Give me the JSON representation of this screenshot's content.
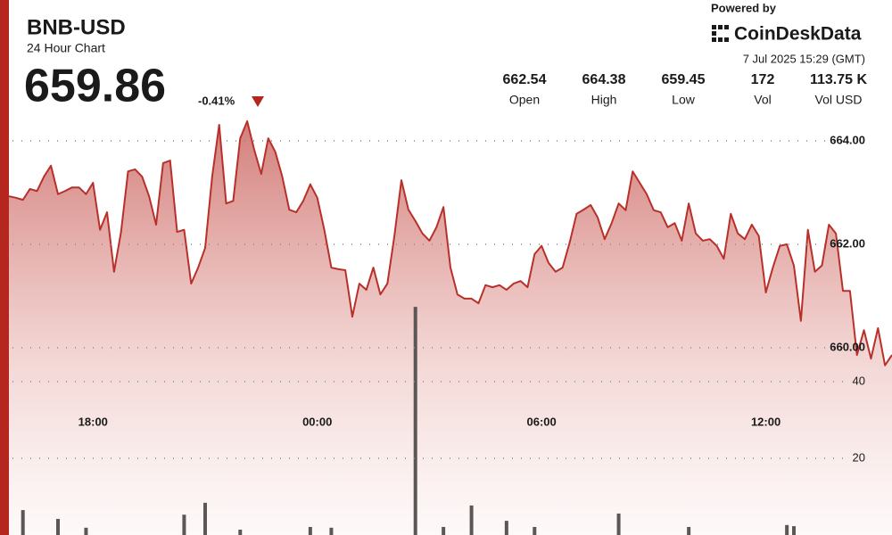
{
  "header": {
    "symbol": "BNB-USD",
    "subtitle": "24 Hour Chart",
    "price": "659.86",
    "change": "-0.41%",
    "powered_by": "Powered by",
    "brand": "CoinDeskData",
    "timestamp": "7 Jul 2025 15:29 (GMT)"
  },
  "stats": [
    {
      "value": "662.54",
      "label": "Open"
    },
    {
      "value": "664.38",
      "label": "High"
    },
    {
      "value": "659.45",
      "label": "Low"
    },
    {
      "value": "172",
      "label": "Vol"
    },
    {
      "value": "113.75 K",
      "label": "Vol USD"
    }
  ],
  "chart_data": {
    "type": "line",
    "categories": [
      null,
      null,
      null,
      null,
      null,
      null,
      null,
      null,
      null,
      null,
      null,
      null,
      "18:00",
      null,
      null,
      null,
      null,
      null,
      null,
      null,
      null,
      null,
      null,
      null,
      null,
      null,
      null,
      null,
      null,
      null,
      null,
      null,
      null,
      null,
      null,
      null,
      null,
      null,
      null,
      null,
      null,
      null,
      null,
      null,
      "00:00",
      null,
      null,
      null,
      null,
      null,
      null,
      null,
      null,
      null,
      null,
      null,
      null,
      null,
      null,
      null,
      null,
      null,
      null,
      null,
      null,
      null,
      null,
      null,
      null,
      null,
      null,
      null,
      null,
      null,
      null,
      null,
      "06:00",
      null,
      null,
      null,
      null,
      null,
      null,
      null,
      null,
      null,
      null,
      null,
      null,
      null,
      null,
      null,
      null,
      null,
      null,
      null,
      null,
      null,
      null,
      null,
      null,
      null,
      null,
      null,
      null,
      null,
      null,
      null,
      "12:00",
      null,
      null,
      null,
      null,
      null,
      null,
      null,
      null,
      null,
      null,
      null,
      null,
      null,
      null,
      null,
      null,
      null,
      null
    ],
    "series": [
      {
        "color": "#b8302a",
        "values": [
          662.93,
          662.9,
          662.86,
          663.07,
          663.03,
          663.31,
          663.52,
          662.97,
          663.03,
          663.1,
          663.1,
          662.97,
          663.19,
          662.28,
          662.62,
          661.47,
          662.24,
          663.41,
          663.45,
          663.31,
          662.93,
          662.38,
          663.57,
          663.62,
          662.24,
          662.28,
          661.24,
          661.55,
          661.93,
          663.31,
          664.31,
          662.79,
          662.84,
          664.05,
          664.38,
          663.83,
          663.36,
          664.05,
          663.79,
          663.31,
          662.67,
          662.62,
          662.84,
          663.16,
          662.9,
          662.28,
          661.55,
          661.52,
          661.5,
          660.6,
          661.24,
          661.12,
          661.55,
          661.03,
          661.24,
          662.16,
          663.24,
          662.67,
          662.45,
          662.21,
          662.07,
          662.33,
          662.72,
          661.55,
          661.03,
          660.95,
          660.95,
          660.86,
          661.21,
          661.17,
          661.21,
          661.12,
          661.24,
          661.29,
          661.17,
          661.81,
          661.97,
          661.64,
          661.47,
          661.55,
          662.03,
          662.59,
          662.67,
          662.76,
          662.52,
          662.1,
          662.41,
          662.79,
          662.66,
          663.41,
          663.19,
          662.97,
          662.66,
          662.62,
          662.33,
          662.41,
          662.07,
          662.79,
          662.21,
          662.07,
          662.1,
          661.97,
          661.72,
          662.59,
          662.21,
          662.1,
          662.38,
          662.16,
          661.07,
          661.55,
          661.97,
          662.0,
          661.59,
          660.52,
          662.28,
          661.47,
          661.59,
          662.38,
          662.21,
          661.1,
          661.1,
          659.86,
          660.34,
          659.79,
          660.38,
          659.66,
          659.86
        ]
      },
      {
        "type": "bar",
        "axis": "y2",
        "color": "#5a5754",
        "values": [
          null,
          null,
          6.5,
          null,
          null,
          null,
          null,
          4.2,
          null,
          null,
          null,
          1.9,
          null,
          null,
          null,
          null,
          null,
          null,
          null,
          null,
          null,
          null,
          null,
          null,
          null,
          5.3,
          null,
          null,
          8.4,
          null,
          null,
          null,
          null,
          1.4,
          null,
          null,
          null,
          null,
          null,
          null,
          null,
          null,
          null,
          2.1,
          null,
          null,
          1.9,
          null,
          null,
          null,
          null,
          null,
          null,
          null,
          null,
          null,
          null,
          null,
          59.5,
          null,
          null,
          null,
          2.1,
          null,
          null,
          null,
          7.7,
          null,
          null,
          null,
          null,
          3.7,
          null,
          null,
          null,
          2.1,
          null,
          null,
          null,
          null,
          null,
          null,
          null,
          null,
          null,
          null,
          null,
          5.6,
          null,
          null,
          null,
          null,
          null,
          null,
          null,
          null,
          null,
          2.1,
          null,
          null,
          null,
          null,
          null,
          null,
          null,
          null,
          null,
          null,
          null,
          null,
          null,
          2.6,
          2.3,
          null,
          null,
          null,
          null,
          null,
          null,
          null,
          null,
          null,
          null,
          null,
          null,
          null,
          null
        ]
      }
    ],
    "ylim": [
      658,
      666
    ],
    "yticks": [
      {
        "value": 660,
        "label": "660.00"
      },
      {
        "value": 662,
        "label": "662.00"
      },
      {
        "value": 664,
        "label": "664.00"
      }
    ],
    "y2lim": [
      0,
      100
    ],
    "y2ticks": [
      20,
      40
    ],
    "grid": true
  }
}
